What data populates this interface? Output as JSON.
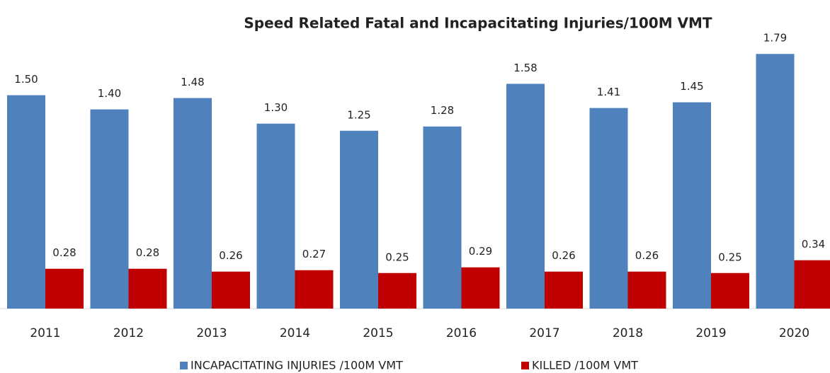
{
  "chart_data": {
    "type": "bar",
    "title": "Speed Related Fatal and Incapacitating  Injuries/100M VMT",
    "categories": [
      "2011",
      "2012",
      "2013",
      "2014",
      "2015",
      "2016",
      "2017",
      "2018",
      "2019",
      "2020"
    ],
    "series": [
      {
        "name": "INCAPACITATING INJURIES /100M VMT",
        "color": "#4f81bd",
        "values": [
          1.5,
          1.4,
          1.48,
          1.3,
          1.25,
          1.28,
          1.58,
          1.41,
          1.45,
          1.79
        ],
        "value_labels": [
          "1.50",
          "1.40",
          "1.48",
          "1.30",
          "1.25",
          "1.28",
          "1.58",
          "1.41",
          "1.45",
          "1.79"
        ]
      },
      {
        "name": "KILLED /100M VMT",
        "color": "#c00000",
        "values": [
          0.28,
          0.28,
          0.26,
          0.27,
          0.25,
          0.29,
          0.26,
          0.26,
          0.25,
          0.34
        ],
        "value_labels": [
          "0.28",
          "0.28",
          "0.26",
          "0.27",
          "0.25",
          "0.29",
          "0.26",
          "0.26",
          "0.25",
          "0.34"
        ]
      }
    ],
    "legend": "bottom"
  }
}
